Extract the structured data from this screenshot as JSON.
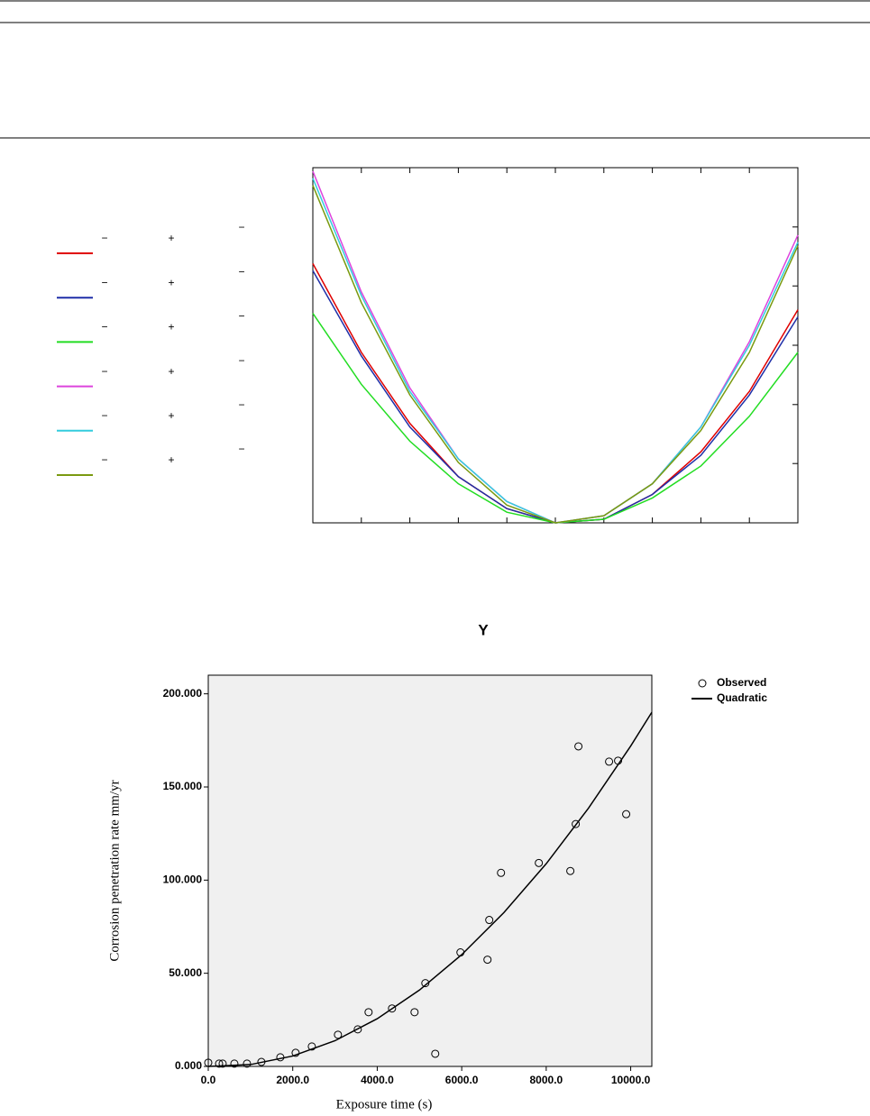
{
  "chart_data": [
    {
      "type": "line",
      "x": [
        -1,
        -0.8,
        -0.6,
        -0.4,
        -0.2,
        0,
        0.2,
        0.4,
        0.6,
        0.8,
        1
      ],
      "xlim": [
        -1,
        1
      ],
      "ylim": [
        0,
        1
      ],
      "xticks": [
        -0.8,
        -0.6,
        -0.4,
        -0.2,
        0,
        0.2,
        0.4,
        0.6,
        0.8
      ],
      "yticks": [
        0.167,
        0.333,
        0.5,
        0.667,
        0.833
      ],
      "series": [
        {
          "color": "#e00000",
          "labels": [
            "−",
            "+",
            "−"
          ],
          "values": [
            0.73,
            0.48,
            0.28,
            0.13,
            0.04,
            0.0,
            0.01,
            0.08,
            0.2,
            0.37,
            0.6
          ]
        },
        {
          "color": "#1f2fa8",
          "labels": [
            "−",
            "+",
            "−"
          ],
          "values": [
            0.71,
            0.47,
            0.27,
            0.13,
            0.04,
            0.0,
            0.01,
            0.08,
            0.19,
            0.36,
            0.58
          ]
        },
        {
          "color": "#22dd22",
          "labels": [
            "−",
            "+",
            "−"
          ],
          "values": [
            0.59,
            0.39,
            0.23,
            0.11,
            0.03,
            0.0,
            0.01,
            0.07,
            0.16,
            0.3,
            0.48
          ]
        },
        {
          "color": "#dd44dd",
          "labels": [
            "−",
            "+",
            "−"
          ],
          "values": [
            0.99,
            0.65,
            0.38,
            0.18,
            0.06,
            0.0,
            0.02,
            0.11,
            0.27,
            0.51,
            0.81
          ]
        },
        {
          "color": "#33ccdd",
          "labels": [
            "−",
            "+",
            "−"
          ],
          "values": [
            0.97,
            0.64,
            0.37,
            0.18,
            0.06,
            0.0,
            0.02,
            0.11,
            0.27,
            0.5,
            0.79
          ]
        },
        {
          "color": "#7a9a10",
          "labels": [
            "−",
            "+",
            "−"
          ],
          "values": [
            0.95,
            0.62,
            0.36,
            0.17,
            0.05,
            0.0,
            0.02,
            0.11,
            0.26,
            0.48,
            0.78
          ]
        }
      ]
    },
    {
      "type": "scatter",
      "title": "Y",
      "x_label": "Exposure time (s)",
      "y_label": "Corrosion penetration rate mm/yr",
      "xlim": [
        0,
        10500
      ],
      "ylim": [
        0,
        210
      ],
      "xticks": [
        {
          "value": 0,
          "label": "0.0"
        },
        {
          "value": 2000,
          "label": "2000.0"
        },
        {
          "value": 4000,
          "label": "4000.0"
        },
        {
          "value": 6000,
          "label": "6000.0"
        },
        {
          "value": 8000,
          "label": "8000.0"
        },
        {
          "value": 10000,
          "label": "10000.0"
        }
      ],
      "yticks": [
        {
          "value": 0,
          "label": "0.000"
        },
        {
          "value": 50,
          "label": "50.000"
        },
        {
          "value": 100,
          "label": "100.000"
        },
        {
          "value": 150,
          "label": "150.000"
        },
        {
          "value": 200,
          "label": "200.000"
        }
      ],
      "legend": "outside right",
      "series": [
        {
          "name": "Observed",
          "type": "scatter",
          "color": "#000000",
          "x": [
            0,
            256,
            341,
            618,
            917,
            1258,
            1706,
            2068,
            2452,
            3070,
            3539,
            3795,
            4350,
            4883,
            5139,
            5373,
            5970,
            6610,
            6652,
            6930,
            7825,
            8571,
            8699,
            8763,
            9488,
            9701,
            9893
          ],
          "values": [
            2,
            1.5,
            1.5,
            1.5,
            1.5,
            2.4,
            4.9,
            7.3,
            10.7,
            17,
            19.9,
            29.1,
            31.1,
            29.1,
            44.7,
            6.8,
            61.2,
            57.3,
            78.6,
            103.9,
            109.2,
            104.9,
            130.1,
            171.8,
            163.6,
            164.1,
            135.4
          ]
        },
        {
          "name": "Quadratic",
          "type": "line",
          "color": "#000000",
          "x": [
            0,
            1000,
            2000,
            3000,
            4000,
            5000,
            6000,
            7000,
            8000,
            9000,
            10000,
            10500
          ],
          "values": [
            0,
            1.0,
            5.6,
            13.8,
            25.6,
            41,
            60,
            82.6,
            108.8,
            138.6,
            172,
            190.1
          ]
        }
      ]
    }
  ]
}
